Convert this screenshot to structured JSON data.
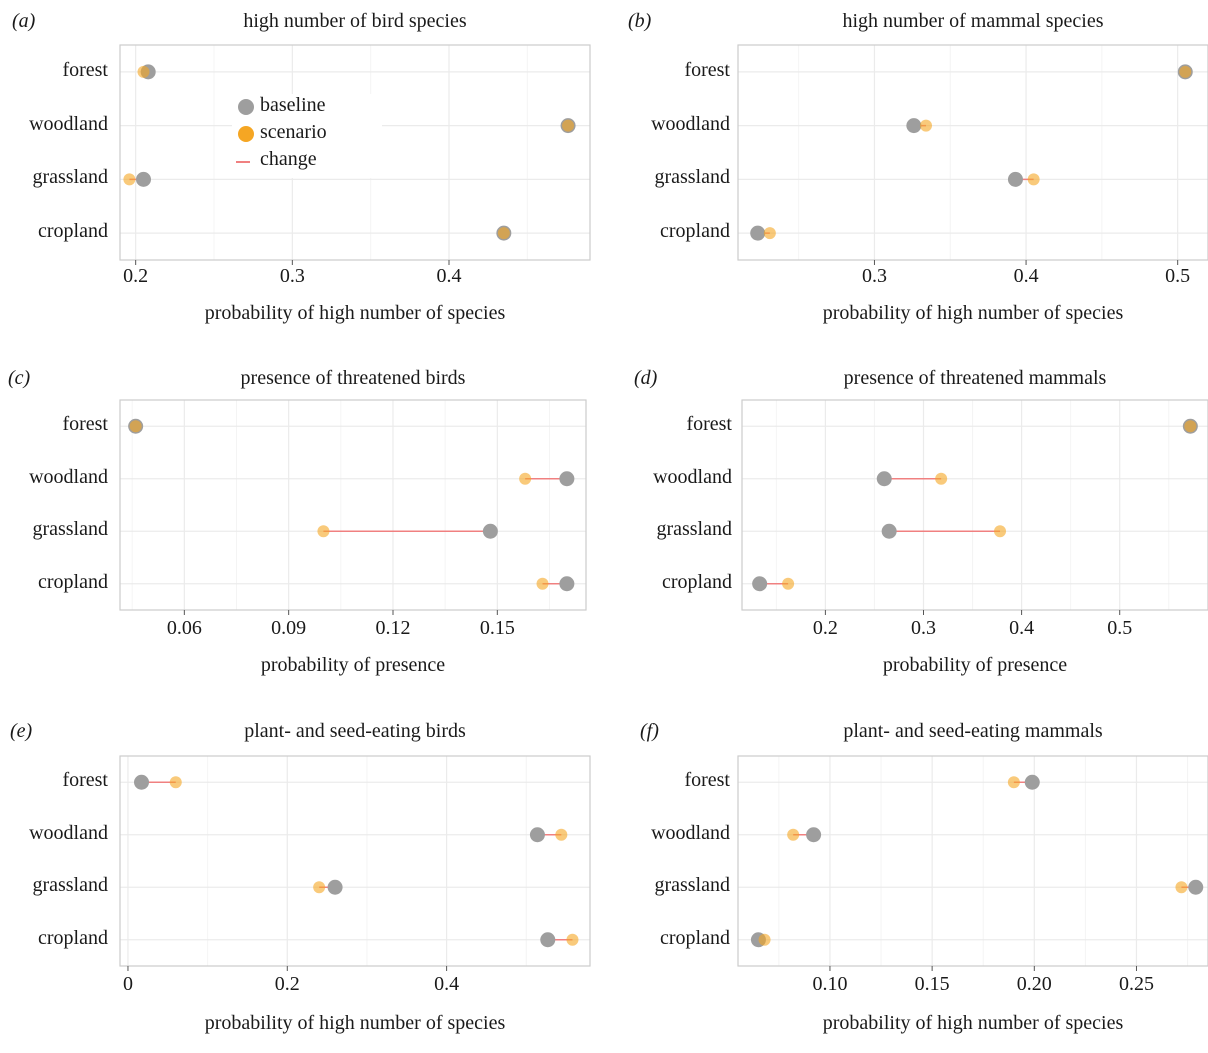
{
  "colors": {
    "baseline": "#9e9e9e",
    "scenario": "#ffb733",
    "scenario_fill": "#f5a623",
    "change": "#f08080",
    "grid": "#ebebeb",
    "border": "#cccccc"
  },
  "legend": {
    "baseline": "baseline",
    "scenario": "scenario",
    "change": "change"
  },
  "chart_data": [
    {
      "type": "scatter",
      "letter": "(a)",
      "title": "high number of bird species",
      "xlabel": "probability of high number of species",
      "categories": [
        "forest",
        "woodland",
        "grassland",
        "cropland"
      ],
      "xlim": [
        0.19,
        0.49
      ],
      "ticks": [
        0.2,
        0.3,
        0.4
      ],
      "tick_labels": [
        "0.2",
        "0.3",
        "0.4"
      ],
      "baseline": [
        0.208,
        0.476,
        0.205,
        0.435
      ],
      "scenario": [
        0.205,
        0.476,
        0.196,
        0.435
      ],
      "legend": "inside"
    },
    {
      "type": "scatter",
      "letter": "(b)",
      "title": "high number of mammal species",
      "xlabel": "probability of high number of species",
      "categories": [
        "forest",
        "woodland",
        "grassland",
        "cropland"
      ],
      "xlim": [
        0.21,
        0.52
      ],
      "ticks": [
        0.3,
        0.4,
        0.5
      ],
      "tick_labels": [
        "0.3",
        "0.4",
        "0.5"
      ],
      "baseline": [
        0.505,
        0.326,
        0.393,
        0.223
      ],
      "scenario": [
        0.505,
        0.334,
        0.405,
        0.231
      ]
    },
    {
      "type": "scatter",
      "letter": "(c)",
      "title": "presence of threatened birds",
      "xlabel": "probability of presence",
      "categories": [
        "forest",
        "woodland",
        "grassland",
        "cropland"
      ],
      "xlim": [
        0.0415,
        0.1755
      ],
      "ticks": [
        0.06,
        0.09,
        0.12,
        0.15
      ],
      "tick_labels": [
        "0.06",
        "0.09",
        "0.12",
        "0.15"
      ],
      "baseline": [
        0.046,
        0.17,
        0.148,
        0.17
      ],
      "scenario": [
        0.046,
        0.158,
        0.1,
        0.163
      ]
    },
    {
      "type": "scatter",
      "letter": "(d)",
      "title": "presence of threatened mammals",
      "xlabel": "probability of presence",
      "categories": [
        "forest",
        "woodland",
        "grassland",
        "cropland"
      ],
      "xlim": [
        0.115,
        0.59
      ],
      "ticks": [
        0.2,
        0.3,
        0.4,
        0.5
      ],
      "tick_labels": [
        "0.2",
        "0.3",
        "0.4",
        "0.5"
      ],
      "baseline": [
        0.572,
        0.26,
        0.265,
        0.133
      ],
      "scenario": [
        0.572,
        0.318,
        0.378,
        0.162
      ]
    },
    {
      "type": "scatter",
      "letter": "(e)",
      "title": "plant- and seed-eating birds",
      "xlabel": "probability of high number of species",
      "categories": [
        "forest",
        "woodland",
        "grassland",
        "cropland"
      ],
      "xlim": [
        -0.01,
        0.58
      ],
      "ticks": [
        0,
        0.2,
        0.4
      ],
      "tick_labels": [
        "0",
        "0.2",
        "0.4"
      ],
      "baseline": [
        0.017,
        0.514,
        0.26,
        0.527
      ],
      "scenario": [
        0.06,
        0.544,
        0.24,
        0.558
      ]
    },
    {
      "type": "scatter",
      "letter": "(f)",
      "title": "plant- and seed-eating mammals",
      "xlabel": "probability of high number of species",
      "categories": [
        "forest",
        "woodland",
        "grassland",
        "cropland"
      ],
      "xlim": [
        0.055,
        0.285
      ],
      "ticks": [
        0.1,
        0.15,
        0.2,
        0.25
      ],
      "tick_labels": [
        "0.10",
        "0.15",
        "0.20",
        "0.25"
      ],
      "baseline": [
        0.199,
        0.092,
        0.279,
        0.065
      ],
      "scenario": [
        0.19,
        0.082,
        0.272,
        0.068
      ]
    }
  ]
}
